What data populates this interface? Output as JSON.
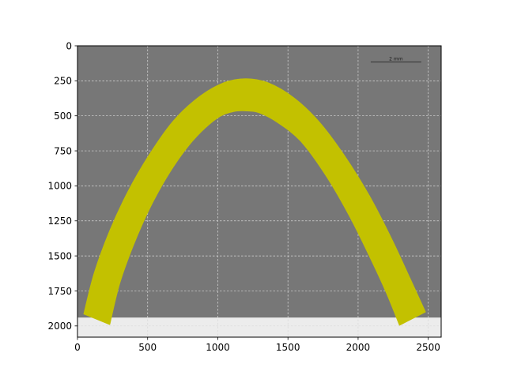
{
  "chart_data": {
    "type": "image",
    "title": "",
    "xlabel": "",
    "ylabel": "",
    "xlim": [
      0,
      2592
    ],
    "ylim": [
      2080,
      0
    ],
    "y_inverted": true,
    "grid": true,
    "grid_style": "dashed",
    "x_ticks": [
      0,
      500,
      1000,
      1500,
      2000,
      2500
    ],
    "y_ticks": [
      0,
      250,
      500,
      750,
      1000,
      1250,
      1500,
      1750,
      2000
    ],
    "image": {
      "extent_y": [
        0,
        1940
      ],
      "background_color": "#777777",
      "below_image_color": "#ececec"
    },
    "scale_bar": {
      "label": "2 mm",
      "x": [
        2090,
        2450
      ],
      "y": 115
    },
    "overlay_arch": {
      "color": "#c3c100",
      "outer_edge": [
        [
          45,
          1915
        ],
        [
          120,
          1620
        ],
        [
          230,
          1320
        ],
        [
          360,
          1040
        ],
        [
          510,
          780
        ],
        [
          680,
          540
        ],
        [
          860,
          370
        ],
        [
          1040,
          265
        ],
        [
          1200,
          235
        ],
        [
          1360,
          265
        ],
        [
          1540,
          370
        ],
        [
          1720,
          540
        ],
        [
          1900,
          780
        ],
        [
          2080,
          1070
        ],
        [
          2240,
          1380
        ],
        [
          2370,
          1660
        ],
        [
          2480,
          1900
        ]
      ],
      "inner_edge": [
        [
          230,
          1990
        ],
        [
          300,
          1700
        ],
        [
          400,
          1420
        ],
        [
          520,
          1150
        ],
        [
          660,
          900
        ],
        [
          820,
          680
        ],
        [
          990,
          520
        ],
        [
          1110,
          470
        ],
        [
          1210,
          465
        ],
        [
          1300,
          480
        ],
        [
          1430,
          550
        ],
        [
          1590,
          680
        ],
        [
          1760,
          910
        ],
        [
          1930,
          1200
        ],
        [
          2080,
          1500
        ],
        [
          2200,
          1760
        ],
        [
          2295,
          1995
        ]
      ],
      "end_caps": {
        "left": [
          [
            45,
            1915
          ],
          [
            230,
            1990
          ]
        ],
        "right": [
          [
            2295,
            1995
          ],
          [
            2480,
            1900
          ]
        ]
      }
    }
  }
}
